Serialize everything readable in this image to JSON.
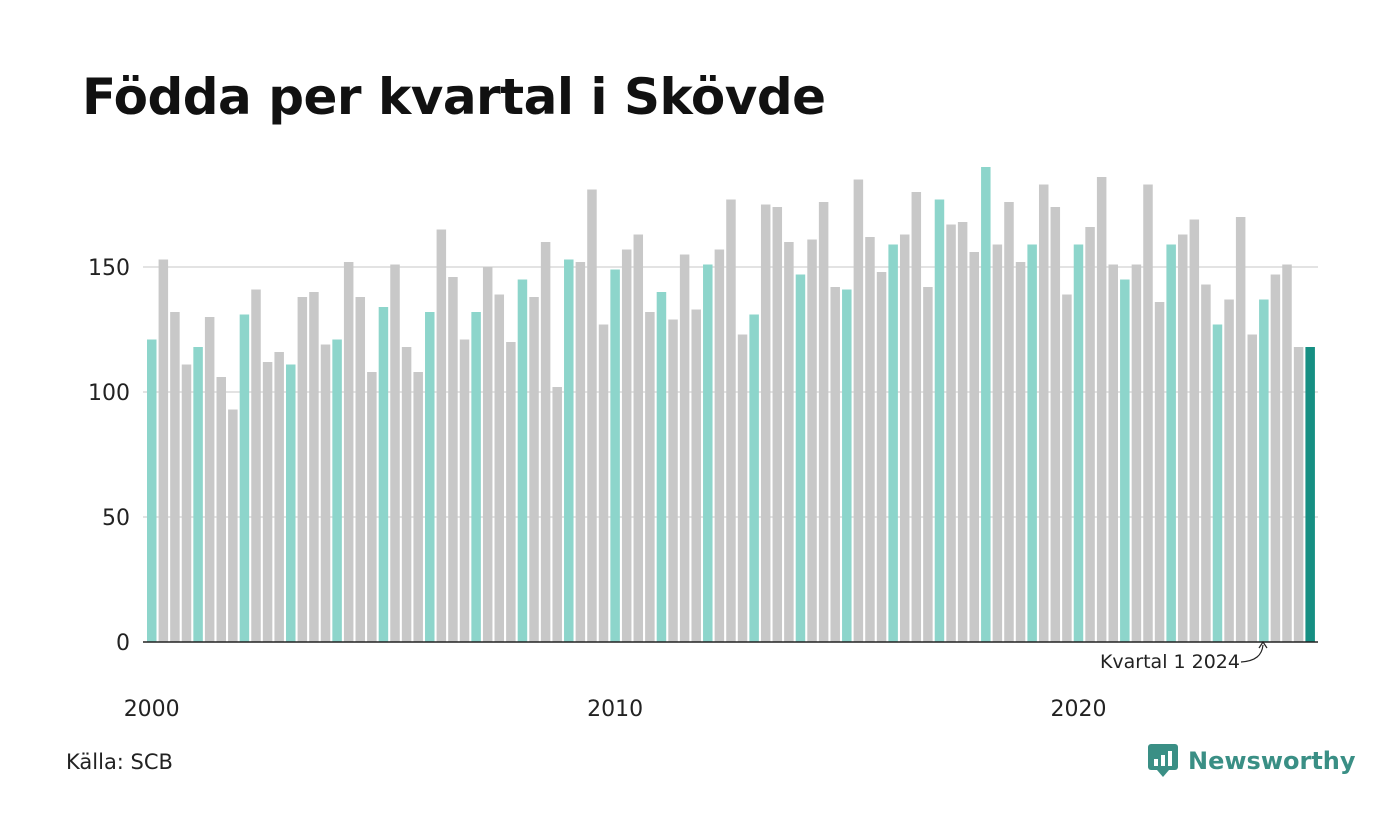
{
  "title": "Födda per kvartal i Skövde",
  "source": "Källa: SCB",
  "brand": {
    "name": "Newsworthy",
    "icon": "newsworthy-logo-icon"
  },
  "colors": {
    "q1": "#8dd5cb",
    "other": "#c8c8c8",
    "latest": "#168f83",
    "grid": "#e3e3e3",
    "axis": "#222222",
    "brand": "#3a8f85"
  },
  "chart_data": {
    "type": "bar",
    "title": "Födda per kvartal i Skövde",
    "xlabel": "",
    "ylabel": "",
    "ylim": [
      0,
      190
    ],
    "yticks": [
      0,
      50,
      100,
      150
    ],
    "grid": true,
    "start_year": 2000,
    "xtick_labels": [
      "2000",
      "2010",
      "2020"
    ],
    "annotation": "Kvartal 1 2024",
    "highlight": "Kvartal 1 of each year; latest quarter emphasized",
    "values": [
      121,
      153,
      132,
      111,
      118,
      130,
      106,
      93,
      131,
      141,
      112,
      116,
      111,
      138,
      140,
      119,
      121,
      152,
      138,
      108,
      134,
      151,
      118,
      108,
      132,
      165,
      146,
      121,
      132,
      150,
      139,
      120,
      145,
      138,
      160,
      102,
      153,
      152,
      181,
      127,
      149,
      157,
      163,
      132,
      140,
      129,
      155,
      133,
      151,
      157,
      177,
      123,
      131,
      175,
      174,
      160,
      147,
      161,
      176,
      142,
      141,
      185,
      162,
      148,
      159,
      163,
      180,
      142,
      177,
      167,
      168,
      156,
      190,
      159,
      176,
      152,
      159,
      183,
      174,
      139,
      159,
      166,
      186,
      151,
      145,
      151,
      183,
      136,
      159,
      163,
      169,
      143,
      127,
      137,
      170,
      123,
      137,
      147,
      151,
      118,
      118
    ]
  }
}
